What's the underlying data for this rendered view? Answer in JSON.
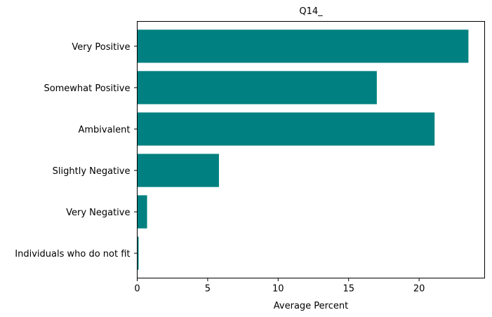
{
  "chart_data": {
    "type": "bar",
    "orientation": "horizontal",
    "title": "Q14_",
    "xlabel": "Average Percent",
    "ylabel": "",
    "categories": [
      "Very Positive",
      "Somewhat Positive",
      "Ambivalent",
      "Slightly Negative",
      "Very Negative",
      "Individuals who do not fit"
    ],
    "values": [
      23.5,
      17.0,
      21.1,
      5.8,
      0.7,
      0.1
    ],
    "xlim": [
      0,
      24.65
    ],
    "xticks": [
      0,
      5,
      10,
      15,
      20
    ],
    "grid": false,
    "legend": "none",
    "bar_color": "#008080"
  }
}
